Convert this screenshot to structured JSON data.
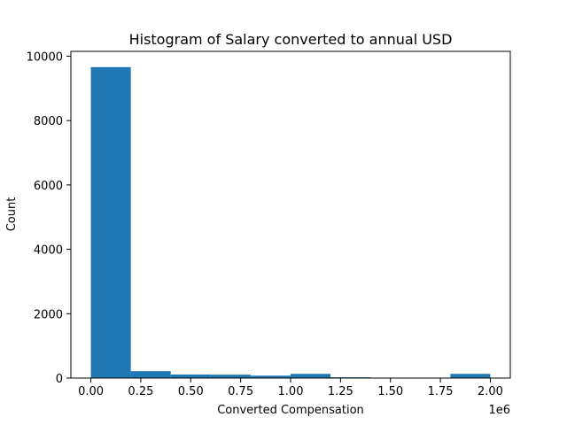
{
  "chart_data": {
    "type": "bar",
    "title": "Histogram of Salary converted to annual USD",
    "xlabel": "Converted Compensation",
    "ylabel": "Count",
    "x_offset_label": "1e6",
    "x_tick_labels": [
      "0.00",
      "0.25",
      "0.50",
      "0.75",
      "1.00",
      "1.25",
      "1.50",
      "1.75",
      "2.00"
    ],
    "y_tick_labels": [
      "0",
      "2000",
      "4000",
      "6000",
      "8000",
      "10000"
    ],
    "xlim": [
      -0.1,
      2.1
    ],
    "ylim": [
      0,
      10150
    ],
    "bins": [
      {
        "x0": 0.0,
        "x1": 0.2,
        "count": 9660
      },
      {
        "x0": 0.2,
        "x1": 0.4,
        "count": 215
      },
      {
        "x0": 0.4,
        "x1": 0.6,
        "count": 110
      },
      {
        "x0": 0.6,
        "x1": 0.8,
        "count": 105
      },
      {
        "x0": 0.8,
        "x1": 1.0,
        "count": 75
      },
      {
        "x0": 1.0,
        "x1": 1.2,
        "count": 130
      },
      {
        "x0": 1.2,
        "x1": 1.4,
        "count": 25
      },
      {
        "x0": 1.4,
        "x1": 1.6,
        "count": 0
      },
      {
        "x0": 1.6,
        "x1": 1.8,
        "count": 0
      },
      {
        "x0": 1.8,
        "x1": 2.0,
        "count": 130
      }
    ],
    "bar_color": "#1f77b4",
    "grid": false,
    "legend": "none"
  }
}
